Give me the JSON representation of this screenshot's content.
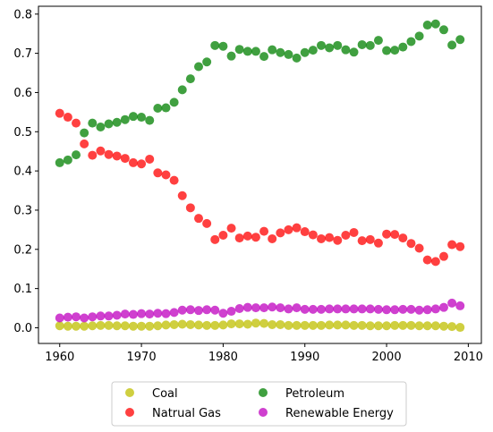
{
  "chart_data": {
    "type": "scatter",
    "title": "",
    "xlabel": "",
    "ylabel": "",
    "xlim": [
      1957.4,
      2011.6
    ],
    "ylim": [
      -0.04,
      0.82
    ],
    "xticks": [
      1960,
      1970,
      1980,
      1990,
      2000,
      2010
    ],
    "yticks": [
      0.0,
      0.1,
      0.2,
      0.3,
      0.4,
      0.5,
      0.6,
      0.7,
      0.8
    ],
    "grid": false,
    "legend_position": "bottom-center-outside",
    "x": [
      1960,
      1961,
      1962,
      1963,
      1964,
      1965,
      1966,
      1967,
      1968,
      1969,
      1970,
      1971,
      1972,
      1973,
      1974,
      1975,
      1976,
      1977,
      1978,
      1979,
      1980,
      1981,
      1982,
      1983,
      1984,
      1985,
      1986,
      1987,
      1988,
      1989,
      1990,
      1991,
      1992,
      1993,
      1994,
      1995,
      1996,
      1997,
      1998,
      1999,
      2000,
      2001,
      2002,
      2003,
      2004,
      2005,
      2006,
      2007,
      2008,
      2009
    ],
    "series": [
      {
        "name": "Coal",
        "color": "#bfbf00",
        "values": [
          0.005,
          0.004,
          0.004,
          0.004,
          0.005,
          0.006,
          0.006,
          0.005,
          0.005,
          0.004,
          0.004,
          0.004,
          0.005,
          0.007,
          0.008,
          0.009,
          0.008,
          0.007,
          0.006,
          0.006,
          0.007,
          0.01,
          0.01,
          0.009,
          0.012,
          0.011,
          0.008,
          0.008,
          0.006,
          0.006,
          0.006,
          0.006,
          0.006,
          0.007,
          0.007,
          0.007,
          0.006,
          0.006,
          0.005,
          0.005,
          0.005,
          0.006,
          0.006,
          0.006,
          0.005,
          0.005,
          0.005,
          0.004,
          0.003,
          0.001
        ]
      },
      {
        "name": "Natrual Gas",
        "color": "#ff0000",
        "values": [
          0.547,
          0.537,
          0.522,
          0.469,
          0.44,
          0.451,
          0.442,
          0.438,
          0.432,
          0.421,
          0.418,
          0.43,
          0.395,
          0.39,
          0.376,
          0.337,
          0.306,
          0.279,
          0.266,
          0.225,
          0.236,
          0.254,
          0.229,
          0.234,
          0.231,
          0.246,
          0.227,
          0.242,
          0.25,
          0.255,
          0.245,
          0.237,
          0.227,
          0.23,
          0.223,
          0.236,
          0.243,
          0.222,
          0.225,
          0.216,
          0.239,
          0.238,
          0.229,
          0.215,
          0.203,
          0.173,
          0.169,
          0.182,
          0.212,
          0.207
        ]
      },
      {
        "name": "Petroleum",
        "color": "#008000",
        "values": [
          0.421,
          0.428,
          0.441,
          0.497,
          0.522,
          0.512,
          0.52,
          0.524,
          0.531,
          0.539,
          0.537,
          0.529,
          0.56,
          0.561,
          0.575,
          0.607,
          0.635,
          0.666,
          0.678,
          0.72,
          0.718,
          0.693,
          0.71,
          0.705,
          0.705,
          0.692,
          0.709,
          0.702,
          0.697,
          0.688,
          0.702,
          0.708,
          0.72,
          0.714,
          0.72,
          0.709,
          0.703,
          0.722,
          0.72,
          0.733,
          0.707,
          0.708,
          0.716,
          0.73,
          0.744,
          0.772,
          0.775,
          0.76,
          0.721,
          0.735
        ]
      },
      {
        "name": "Renewable Energy",
        "color": "#bf00bf",
        "values": [
          0.025,
          0.027,
          0.028,
          0.025,
          0.028,
          0.03,
          0.03,
          0.032,
          0.035,
          0.034,
          0.036,
          0.035,
          0.037,
          0.036,
          0.039,
          0.045,
          0.046,
          0.044,
          0.046,
          0.045,
          0.037,
          0.042,
          0.049,
          0.052,
          0.051,
          0.051,
          0.053,
          0.051,
          0.048,
          0.051,
          0.047,
          0.047,
          0.047,
          0.048,
          0.048,
          0.048,
          0.048,
          0.048,
          0.048,
          0.047,
          0.046,
          0.046,
          0.047,
          0.047,
          0.045,
          0.046,
          0.048,
          0.052,
          0.063,
          0.056
        ]
      }
    ]
  }
}
